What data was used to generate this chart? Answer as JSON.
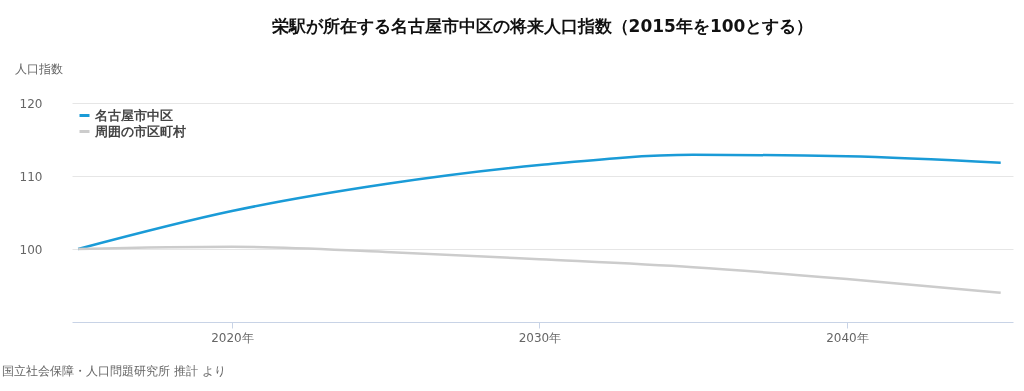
{
  "chart_data": {
    "type": "line",
    "title": "栄駅が所在する名古屋市中区の将来人口指数（2015年を100とする）",
    "ylabel": "人口指数",
    "x": [
      2015,
      2020,
      2025,
      2030,
      2035,
      2040,
      2045
    ],
    "series": [
      {
        "name": "名古屋市中区",
        "color": "#1a9bd7",
        "values": [
          100,
          105.2,
          108.9,
          111.5,
          112.9,
          112.7,
          111.8
        ]
      },
      {
        "name": "周囲の市区町村",
        "color": "#cccccc",
        "values": [
          100,
          100.3,
          99.6,
          98.6,
          97.5,
          95.9,
          94.0
        ]
      }
    ],
    "xlim": [
      2014.8,
      2045.4
    ],
    "xticks": [
      {
        "value": 2020,
        "label": "2020年"
      },
      {
        "value": 2030,
        "label": "2030年"
      },
      {
        "value": 2040,
        "label": "2040年"
      }
    ],
    "ylim": [
      90,
      120
    ],
    "yticks": [
      100,
      110,
      120
    ],
    "grid": "y",
    "legend": "top left",
    "marker": "none",
    "line_style": "solid",
    "annotations": [
      "国立社会保障・人口問題研究所 推計 より"
    ]
  }
}
